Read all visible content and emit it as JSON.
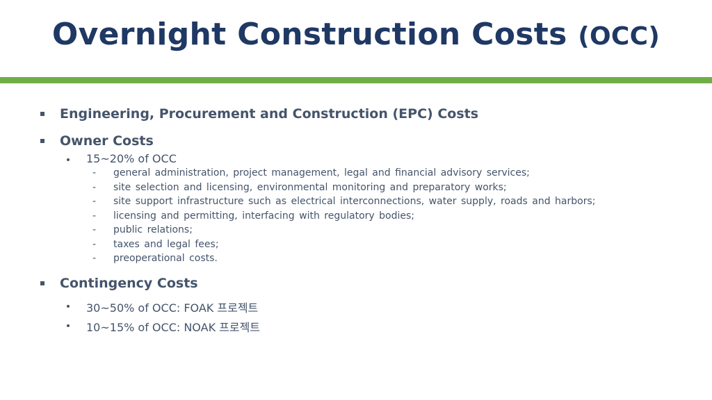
{
  "title": {
    "main": "Overnight Construction Costs",
    "paren": "(OCC)"
  },
  "accent_color": "#70ad47",
  "items": [
    {
      "label": "Engineering, Procurement and Construction (EPC) Costs"
    },
    {
      "label": "Owner Costs",
      "sub": [
        {
          "label": "15~20% of OCC",
          "details": [
            "general administration, project management, legal and financial advisory services;",
            "site selection and licensing, environmental monitoring and preparatory works;",
            "site support infrastructure such as electrical interconnections, water supply, roads and harbors;",
            "licensing and permitting, interfacing with regulatory bodies;",
            "public relations;",
            "taxes and legal fees;",
            "preoperational costs."
          ]
        }
      ]
    },
    {
      "label": "Contingency Costs",
      "sub": [
        {
          "label": "30~50% of OCC: FOAK 프로젝트"
        },
        {
          "label": "10~15% of OCC: NOAK 프로젝트"
        }
      ]
    }
  ],
  "dash": "-"
}
